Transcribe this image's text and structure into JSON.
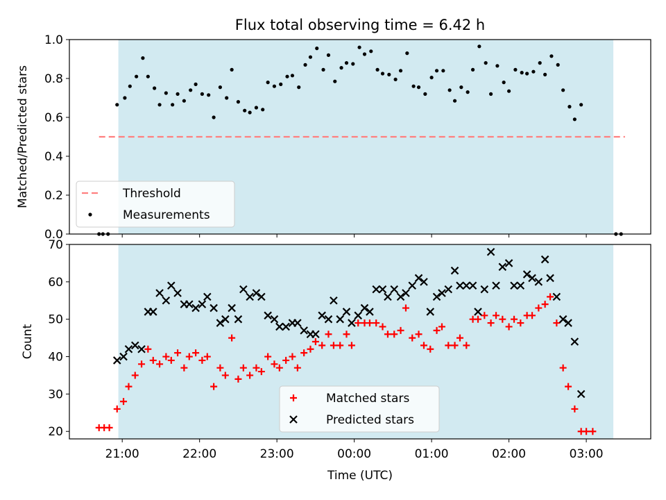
{
  "chart_data": [
    {
      "type": "scatter",
      "title": "Flux total observing time = 6.42 h",
      "xlabel": "",
      "ylabel": "Matched/Predicted stars",
      "ylim": [
        0,
        1.0
      ],
      "yticks": [
        "0.0",
        "0.2",
        "0.4",
        "0.6",
        "0.8",
        "1.0"
      ],
      "shaded_region": {
        "x_start": "20:57",
        "x_end": "03:21",
        "color": "#add8e6"
      },
      "threshold": {
        "name": "Threshold",
        "value": 0.5,
        "x_range": [
          "20:42",
          "03:30"
        ],
        "color": "#ff7f7f"
      },
      "legend": {
        "placement": "lower-left",
        "entries": [
          "Threshold",
          "Measurements"
        ]
      },
      "series": [
        {
          "name": "Measurements",
          "color": "#000000",
          "points": [
            [
              "20:42",
              0.0
            ],
            [
              "20:45",
              0.0
            ],
            [
              "20:49",
              0.0
            ],
            [
              "20:56",
              0.665
            ],
            [
              "21:02",
              0.7
            ],
            [
              "21:06",
              0.76
            ],
            [
              "21:11",
              0.81
            ],
            [
              "21:16",
              0.905
            ],
            [
              "21:20",
              0.81
            ],
            [
              "21:25",
              0.75
            ],
            [
              "21:29",
              0.665
            ],
            [
              "21:34",
              0.725
            ],
            [
              "21:39",
              0.665
            ],
            [
              "21:43",
              0.72
            ],
            [
              "21:48",
              0.685
            ],
            [
              "21:53",
              0.74
            ],
            [
              "21:57",
              0.77
            ],
            [
              "22:02",
              0.72
            ],
            [
              "22:07",
              0.715
            ],
            [
              "22:11",
              0.6
            ],
            [
              "22:16",
              0.755
            ],
            [
              "22:21",
              0.7
            ],
            [
              "22:25",
              0.845
            ],
            [
              "22:30",
              0.68
            ],
            [
              "22:35",
              0.635
            ],
            [
              "22:39",
              0.625
            ],
            [
              "22:44",
              0.65
            ],
            [
              "22:49",
              0.64
            ],
            [
              "22:53",
              0.78
            ],
            [
              "22:58",
              0.76
            ],
            [
              "23:03",
              0.77
            ],
            [
              "23:08",
              0.81
            ],
            [
              "23:12",
              0.815
            ],
            [
              "23:17",
              0.755
            ],
            [
              "23:22",
              0.87
            ],
            [
              "23:26",
              0.91
            ],
            [
              "23:31",
              0.955
            ],
            [
              "23:36",
              0.845
            ],
            [
              "23:40",
              0.92
            ],
            [
              "23:45",
              0.785
            ],
            [
              "23:50",
              0.855
            ],
            [
              "23:54",
              0.88
            ],
            [
              "23:59",
              0.875
            ],
            [
              "00:04",
              0.96
            ],
            [
              "00:08",
              0.925
            ],
            [
              "00:13",
              0.94
            ],
            [
              "00:18",
              0.845
            ],
            [
              "00:22",
              0.825
            ],
            [
              "00:27",
              0.82
            ],
            [
              "00:32",
              0.795
            ],
            [
              "00:36",
              0.84
            ],
            [
              "00:41",
              0.93
            ],
            [
              "00:46",
              0.76
            ],
            [
              "00:50",
              0.755
            ],
            [
              "00:55",
              0.72
            ],
            [
              "01:00",
              0.805
            ],
            [
              "01:04",
              0.84
            ],
            [
              "01:09",
              0.84
            ],
            [
              "01:14",
              0.74
            ],
            [
              "01:18",
              0.685
            ],
            [
              "01:23",
              0.755
            ],
            [
              "01:28",
              0.73
            ],
            [
              "01:32",
              0.845
            ],
            [
              "01:37",
              0.965
            ],
            [
              "01:42",
              0.88
            ],
            [
              "01:46",
              0.72
            ],
            [
              "01:51",
              0.865
            ],
            [
              "01:56",
              0.78
            ],
            [
              "02:00",
              0.735
            ],
            [
              "02:05",
              0.845
            ],
            [
              "02:10",
              0.83
            ],
            [
              "02:14",
              0.825
            ],
            [
              "02:19",
              0.835
            ],
            [
              "02:24",
              0.88
            ],
            [
              "02:28",
              0.82
            ],
            [
              "02:33",
              0.915
            ],
            [
              "02:38",
              0.87
            ],
            [
              "02:42",
              0.74
            ],
            [
              "02:47",
              0.655
            ],
            [
              "02:51",
              0.59
            ],
            [
              "02:56",
              0.665
            ],
            [
              "03:23",
              0.0
            ],
            [
              "03:27",
              0.0
            ]
          ]
        }
      ]
    },
    {
      "type": "scatter",
      "title": "",
      "xlabel": "Time (UTC)",
      "ylabel": "Count",
      "ylim": [
        18,
        70
      ],
      "yticks": [
        "20",
        "30",
        "40",
        "50",
        "60",
        "70"
      ],
      "xticks": [
        "21:00",
        "22:00",
        "23:00",
        "00:00",
        "01:00",
        "02:00",
        "03:00"
      ],
      "shaded_region": {
        "x_start": "20:57",
        "x_end": "03:21",
        "color": "#add8e6"
      },
      "legend": {
        "placement": "lower-center",
        "entries": [
          "Matched stars",
          "Predicted stars"
        ]
      },
      "series": [
        {
          "name": "Matched stars",
          "marker": "plus",
          "color": "#ff0000",
          "points": [
            [
              "20:42",
              21
            ],
            [
              "20:46",
              21
            ],
            [
              "20:50",
              21
            ],
            [
              "20:56",
              26
            ],
            [
              "21:01",
              28
            ],
            [
              "21:05",
              32
            ],
            [
              "21:10",
              35
            ],
            [
              "21:15",
              38
            ],
            [
              "21:20",
              42
            ],
            [
              "21:24",
              39
            ],
            [
              "21:29",
              38
            ],
            [
              "21:34",
              40
            ],
            [
              "21:38",
              39
            ],
            [
              "21:43",
              41
            ],
            [
              "21:48",
              37
            ],
            [
              "21:52",
              40
            ],
            [
              "21:57",
              41
            ],
            [
              "22:02",
              39
            ],
            [
              "22:06",
              40
            ],
            [
              "22:11",
              32
            ],
            [
              "22:16",
              37
            ],
            [
              "22:20",
              35
            ],
            [
              "22:25",
              45
            ],
            [
              "22:30",
              34
            ],
            [
              "22:34",
              37
            ],
            [
              "22:39",
              35
            ],
            [
              "22:44",
              37
            ],
            [
              "22:48",
              36
            ],
            [
              "22:53",
              40
            ],
            [
              "22:58",
              38
            ],
            [
              "23:02",
              37
            ],
            [
              "23:07",
              39
            ],
            [
              "23:12",
              40
            ],
            [
              "23:16",
              37
            ],
            [
              "23:21",
              41
            ],
            [
              "23:26",
              42
            ],
            [
              "23:30",
              44
            ],
            [
              "23:35",
              43
            ],
            [
              "23:40",
              46
            ],
            [
              "23:44",
              43
            ],
            [
              "23:49",
              43
            ],
            [
              "23:54",
              46
            ],
            [
              "23:58",
              43
            ],
            [
              "00:03",
              49
            ],
            [
              "00:08",
              49
            ],
            [
              "00:12",
              49
            ],
            [
              "00:17",
              49
            ],
            [
              "00:22",
              48
            ],
            [
              "00:26",
              46
            ],
            [
              "00:31",
              46
            ],
            [
              "00:36",
              47
            ],
            [
              "00:40",
              53
            ],
            [
              "00:45",
              45
            ],
            [
              "00:50",
              46
            ],
            [
              "00:54",
              43
            ],
            [
              "00:59",
              42
            ],
            [
              "01:04",
              47
            ],
            [
              "01:08",
              48
            ],
            [
              "01:13",
              43
            ],
            [
              "01:18",
              43
            ],
            [
              "01:22",
              45
            ],
            [
              "01:27",
              43
            ],
            [
              "01:32",
              50
            ],
            [
              "01:36",
              50
            ],
            [
              "01:41",
              51
            ],
            [
              "01:46",
              49
            ],
            [
              "01:50",
              51
            ],
            [
              "01:55",
              50
            ],
            [
              "02:00",
              48
            ],
            [
              "02:04",
              50
            ],
            [
              "02:09",
              49
            ],
            [
              "02:14",
              51
            ],
            [
              "02:18",
              51
            ],
            [
              "02:23",
              53
            ],
            [
              "02:28",
              54
            ],
            [
              "02:32",
              56
            ],
            [
              "02:37",
              49
            ],
            [
              "02:42",
              37
            ],
            [
              "02:46",
              32
            ],
            [
              "02:51",
              26
            ],
            [
              "02:56",
              20
            ],
            [
              "03:00",
              20
            ],
            [
              "03:05",
              20
            ]
          ]
        },
        {
          "name": "Predicted stars",
          "marker": "x",
          "color": "#000000",
          "points": [
            [
              "20:56",
              39
            ],
            [
              "21:01",
              40
            ],
            [
              "21:05",
              42
            ],
            [
              "21:10",
              43
            ],
            [
              "21:15",
              42
            ],
            [
              "21:20",
              52
            ],
            [
              "21:24",
              52
            ],
            [
              "21:29",
              57
            ],
            [
              "21:34",
              55
            ],
            [
              "21:38",
              59
            ],
            [
              "21:43",
              57
            ],
            [
              "21:48",
              54
            ],
            [
              "21:52",
              54
            ],
            [
              "21:57",
              53
            ],
            [
              "22:02",
              54
            ],
            [
              "22:06",
              56
            ],
            [
              "22:11",
              53
            ],
            [
              "22:16",
              49
            ],
            [
              "22:20",
              50
            ],
            [
              "22:25",
              53
            ],
            [
              "22:30",
              50
            ],
            [
              "22:34",
              58
            ],
            [
              "22:39",
              56
            ],
            [
              "22:44",
              57
            ],
            [
              "22:48",
              56
            ],
            [
              "22:53",
              51
            ],
            [
              "22:58",
              50
            ],
            [
              "23:02",
              48
            ],
            [
              "23:07",
              48
            ],
            [
              "23:12",
              49
            ],
            [
              "23:16",
              49
            ],
            [
              "23:21",
              47
            ],
            [
              "23:26",
              46
            ],
            [
              "23:30",
              46
            ],
            [
              "23:35",
              51
            ],
            [
              "23:40",
              50
            ],
            [
              "23:44",
              55
            ],
            [
              "23:49",
              50
            ],
            [
              "23:54",
              52
            ],
            [
              "23:58",
              49
            ],
            [
              "00:03",
              51
            ],
            [
              "00:08",
              53
            ],
            [
              "00:12",
              52
            ],
            [
              "00:17",
              58
            ],
            [
              "00:22",
              58
            ],
            [
              "00:26",
              56
            ],
            [
              "00:31",
              58
            ],
            [
              "00:36",
              56
            ],
            [
              "00:40",
              57
            ],
            [
              "00:45",
              59
            ],
            [
              "00:50",
              61
            ],
            [
              "00:54",
              60
            ],
            [
              "00:59",
              52
            ],
            [
              "01:04",
              56
            ],
            [
              "01:08",
              57
            ],
            [
              "01:13",
              58
            ],
            [
              "01:18",
              63
            ],
            [
              "01:22",
              59
            ],
            [
              "01:27",
              59
            ],
            [
              "01:32",
              59
            ],
            [
              "01:36",
              52
            ],
            [
              "01:41",
              58
            ],
            [
              "01:46",
              68
            ],
            [
              "01:50",
              59
            ],
            [
              "01:55",
              64
            ],
            [
              "02:00",
              65
            ],
            [
              "02:04",
              59
            ],
            [
              "02:09",
              59
            ],
            [
              "02:14",
              62
            ],
            [
              "02:18",
              61
            ],
            [
              "02:23",
              60
            ],
            [
              "02:28",
              66
            ],
            [
              "02:32",
              61
            ],
            [
              "02:37",
              56
            ],
            [
              "02:42",
              50
            ],
            [
              "02:46",
              49
            ],
            [
              "02:51",
              44
            ],
            [
              "02:56",
              30
            ]
          ]
        }
      ]
    }
  ]
}
